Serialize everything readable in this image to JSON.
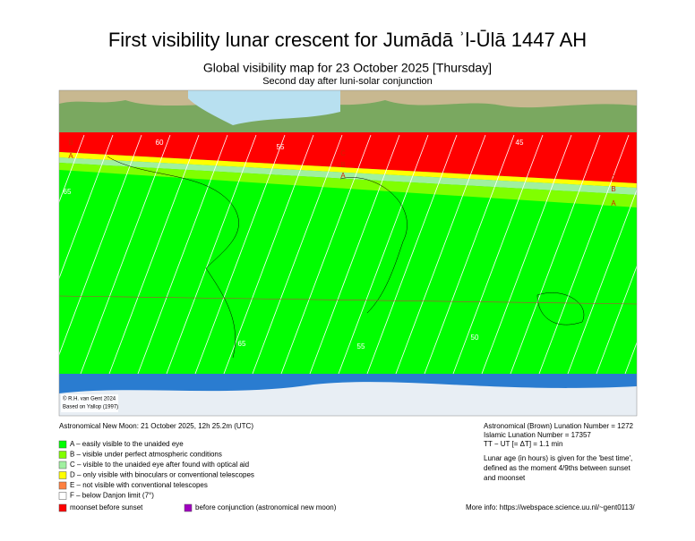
{
  "header": {
    "title": "First visibility lunar crescent for Jumādā ʾl-Ūlā 1447 AH",
    "subtitle": "Global visibility map for 23 October 2025 [Thursday]",
    "subtitle2": "Second day after luni-solar conjunction"
  },
  "map": {
    "credits": [
      "© R.H. van Gent 2024",
      "Based on Yallop (1997)"
    ],
    "zone_labels": [
      "B",
      "A",
      "C",
      "B",
      "A",
      "C",
      "B",
      "A"
    ],
    "contour_labels": [
      "65",
      "55",
      "45",
      "65",
      "60",
      "55",
      "50"
    ]
  },
  "info": {
    "new_moon": "Astronomical New Moon: 21 October 2025, 12h 25.2m (UTC)",
    "lunation_brown": "Astronomical (Brown) Lunation Number = 1272",
    "lunation_islamic": "Islamic Lunation Number = 17357",
    "delta_t": "TT − UT [= ΔT] = 1.1 min",
    "age_note": [
      "Lunar age (in hours) is given for the 'best time',",
      "defined as the moment 4/9ths between sunset",
      "and moonset"
    ],
    "more_info": "More info: https://webspace.science.uu.nl/~gent0113/"
  },
  "legend": {
    "items": [
      {
        "label": "A – easily visible to the unaided eye",
        "color": "#00ff00"
      },
      {
        "label": "B – visible under perfect atmospheric conditions",
        "color": "#80ff00"
      },
      {
        "label": "C – visible to the unaided eye after found with optical aid",
        "color": "#a0f0a0"
      },
      {
        "label": "D – only visible with binoculars or conventional telescopes",
        "color": "#ffff00"
      },
      {
        "label": "E – not visible with conventional telescopes",
        "color": "#ff8040"
      },
      {
        "label": "F – below Danjon limit (7°)",
        "color": "#ffffff"
      }
    ],
    "extra": [
      {
        "label": "moonset before sunset",
        "color": "#ff0000"
      },
      {
        "label": "before conjunction (astronomical new moon)",
        "color": "#a000c0"
      }
    ]
  }
}
